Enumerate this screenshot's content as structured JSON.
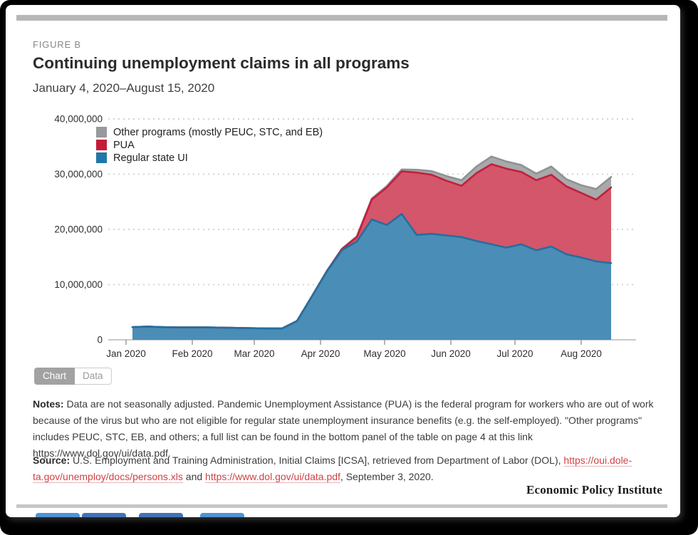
{
  "page": {
    "background": "#000000",
    "card_background": "#ffffff"
  },
  "header": {
    "figure_label": "FIGURE B",
    "title": "Continuing unemployment claims in all programs",
    "subtitle": "January 4, 2020–August 15, 2020"
  },
  "chart_data": {
    "type": "area",
    "stacked": true,
    "title": "Continuing unemployment claims in all programs",
    "xlabel": "",
    "ylabel": "",
    "unit": "millions of continuing claims",
    "ylim_millions": [
      0,
      40
    ],
    "grid": "dotted horizontal gridlines, solid zero baseline",
    "legend_position": "top-left inside plot",
    "y_ticks": [
      {
        "value": 0,
        "label": "0"
      },
      {
        "value": 10,
        "label": "10,000,000"
      },
      {
        "value": 20,
        "label": "20,000,000"
      },
      {
        "value": 30,
        "label": "30,000,000"
      },
      {
        "value": 40,
        "label": "40,000,000"
      }
    ],
    "x_ticks": [
      "Jan 2020",
      "Feb 2020",
      "Mar 2020",
      "Apr 2020",
      "May 2020",
      "Jun 2020",
      "Jul 2020",
      "Aug 2020"
    ],
    "weeks": [
      "Jan 4",
      "Jan 11",
      "Jan 18",
      "Jan 25",
      "Feb 1",
      "Feb 8",
      "Feb 15",
      "Feb 22",
      "Feb 29",
      "Mar 7",
      "Mar 14",
      "Mar 21",
      "Mar 28",
      "Apr 4",
      "Apr 11",
      "Apr 18",
      "Apr 25",
      "May 2",
      "May 9",
      "May 16",
      "May 23",
      "May 30",
      "Jun 6",
      "Jun 13",
      "Jun 20",
      "Jun 27",
      "Jul 4",
      "Jul 11",
      "Jul 18",
      "Jul 25",
      "Aug 1",
      "Aug 8",
      "Aug 15"
    ],
    "series": [
      {
        "name": "Regular state UI",
        "fill": "#4a8db6",
        "stroke": "#2170a0",
        "swatch": "#1f77a8",
        "values": [
          2.3,
          2.4,
          2.3,
          2.25,
          2.25,
          2.25,
          2.2,
          2.15,
          2.1,
          2.05,
          2.05,
          3.4,
          7.9,
          12.4,
          16.2,
          17.8,
          21.8,
          20.8,
          22.8,
          19.0,
          19.2,
          18.9,
          18.6,
          17.9,
          17.3,
          16.7,
          17.3,
          16.2,
          16.9,
          15.5,
          14.9,
          14.2,
          13.9
        ]
      },
      {
        "name": "PUA",
        "fill": "#d4566a",
        "stroke": "#c2203c",
        "swatch": "#c31c38",
        "values": [
          0,
          0,
          0,
          0,
          0,
          0,
          0,
          0,
          0,
          0,
          0,
          0,
          0,
          0.05,
          0.2,
          0.8,
          3.6,
          6.8,
          7.7,
          11.3,
          10.7,
          9.9,
          9.3,
          12.3,
          14.5,
          14.3,
          13.1,
          12.7,
          13.0,
          12.3,
          11.7,
          11.2,
          13.7
        ]
      },
      {
        "name": "Other programs (mostly PEUC, STC, and EB)",
        "fill": "#a7a9ab",
        "stroke": "#8f9193",
        "swatch": "#97999c",
        "values": [
          0,
          0,
          0,
          0,
          0,
          0,
          0,
          0,
          0,
          0,
          0,
          0,
          0,
          0.05,
          0.1,
          0.15,
          0.2,
          0.25,
          0.35,
          0.5,
          0.65,
          0.85,
          1.0,
          1.2,
          1.4,
          1.3,
          1.25,
          1.2,
          1.5,
          1.3,
          1.4,
          1.9,
          1.9
        ]
      }
    ]
  },
  "legend": {
    "items": [
      {
        "label": "Other programs (mostly PEUC, STC, and EB)",
        "color": "#97999c"
      },
      {
        "label": "PUA",
        "color": "#c31c38"
      },
      {
        "label": "Regular state UI",
        "color": "#1f77a8"
      }
    ]
  },
  "toggle": {
    "chart_label": "Chart",
    "data_label": "Data"
  },
  "notes": {
    "label": "Notes:",
    "text": "Data are not seasonally adjusted. Pandemic Unemployment Assistance (PUA) is the federal program for workers who are out of work because of the virus but who are not eligible for regular state unemployment insurance benefits (e.g. the self-employed). \"Other programs\" includes PEUC, STC, EB, and others; a full list can be found in the bottom panel of the table on page 4 at this link https://www.dol.gov/ui/data.pdf."
  },
  "source": {
    "label": "Source:",
    "text1": "U.S. Employment and Training Administration, Initial Claims [ICSA], retrieved from Department of Labor (DOL), ",
    "link1": "https://oui.dole­ta.gov/unemploy/docs/persons.xls",
    "text2": " and ",
    "link2": "https://www.dol.gov/ui/data.pdf",
    "text3": ", September 3, 2020.",
    "link_color": "#cf4246"
  },
  "footer": {
    "logo_text": "Economic Policy Institute"
  },
  "share": {
    "button_colors": [
      "#4f93d6",
      "#4472b8",
      "#4472b8",
      "#4f93d6"
    ]
  }
}
